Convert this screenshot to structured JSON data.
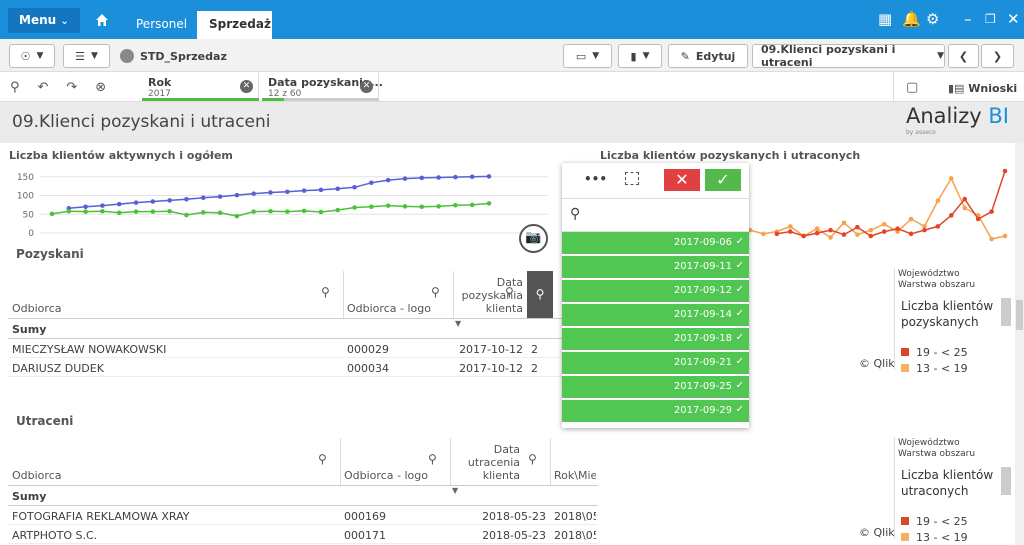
{
  "topbar": {
    "menu": "Menu",
    "tabs": [
      "Personel",
      "Sprzedaż"
    ]
  },
  "toolbar": {
    "app": "STD_Sprzedaz",
    "edit": "Edytuj",
    "sheet": "09.Klienci pozyskani i utraceni"
  },
  "selections": {
    "items": [
      {
        "field": "Rok",
        "value": "2017"
      },
      {
        "field": "Data pozyskania...",
        "value": "12 z 60"
      }
    ],
    "insights": "Wnioski"
  },
  "sheet": {
    "title": "09.Klienci pozyskani i utraceni",
    "logo": [
      "Analizy",
      "BI"
    ],
    "logo_sub": "by asseco"
  },
  "chart_data": [
    {
      "type": "line",
      "title": "Liczba klientów aktywnych i ogółem",
      "ylim": [
        0,
        160
      ],
      "yticks": [
        0,
        50,
        100,
        150
      ],
      "grid": true,
      "series": [
        {
          "color": "#5b5fd4",
          "values": [
            null,
            66,
            70,
            73,
            77,
            81,
            84,
            87,
            90,
            94,
            97,
            101,
            105,
            108,
            110,
            113,
            115,
            118,
            122,
            134,
            141,
            145,
            147,
            148,
            149,
            150,
            151
          ]
        },
        {
          "color": "#4cc23a",
          "values": [
            51,
            58,
            57,
            58,
            54,
            57,
            57,
            58,
            48,
            55,
            54,
            45,
            57,
            58,
            57,
            59,
            56,
            61,
            68,
            70,
            73,
            71,
            70,
            71,
            74,
            75,
            79
          ]
        }
      ]
    },
    {
      "type": "line",
      "title": "Liczba klientów pozyskanych i utraconych",
      "series": [
        {
          "color": "#f5a24a",
          "values": [
            20,
            15,
            18,
            25,
            12,
            22,
            10,
            30,
            14,
            20,
            28,
            18,
            35,
            25,
            60,
            90,
            50,
            40,
            8,
            12
          ]
        },
        {
          "color": "#e2452b",
          "values": [
            null,
            null,
            15,
            18,
            12,
            16,
            20,
            14,
            24,
            12,
            18,
            22,
            15,
            20,
            25,
            40,
            62,
            35,
            45,
            100
          ]
        }
      ]
    }
  ],
  "tables": [
    {
      "title": "Pozyskani",
      "columns": [
        "Odbiorca",
        "Odbiorca - logo",
        "Data pozyskania klienta",
        "R"
      ],
      "totals": "Sumy",
      "rows": [
        [
          "MIECZYSŁAW NOWAKOWSKI",
          "000029",
          "2017-10-12",
          "2"
        ],
        [
          "DARIUSZ DUDEK",
          "000034",
          "2017-10-12",
          "2"
        ]
      ]
    },
    {
      "title": "Utraceni",
      "columns": [
        "Odbiorca",
        "Odbiorca - logo",
        "Data utracenia klienta",
        "Rok\\Mie"
      ],
      "totals": "Sumy",
      "rows": [
        [
          "FOTOGRAFIA REKLAMOWA XRAY",
          "000169",
          "2018-05-23",
          "2018\\05"
        ],
        [
          "ARTPHOTO S.C.",
          "000171",
          "2018-05-23",
          "2018\\05"
        ]
      ]
    }
  ],
  "maps": [
    {
      "legend_title": "Województwo",
      "layer": "Warstwa obszaru",
      "measure": "Liczba klientów pozyskanych",
      "legend": [
        {
          "label": "19 - < 25",
          "color": "#d9472b"
        },
        {
          "label": "13 - < 19",
          "color": "#f5b061"
        }
      ],
      "credit": "© Qlik"
    },
    {
      "legend_title": "Województwo",
      "layer": "Warstwa obszaru",
      "measure": "Liczba klientów utraconych",
      "legend": [
        {
          "label": "19 - < 25",
          "color": "#d9472b"
        },
        {
          "label": "13 - < 19",
          "color": "#f5b061"
        }
      ],
      "credit": "© Qlik"
    }
  ],
  "dropdown": {
    "items": [
      "2017-09-06",
      "2017-09-11",
      "2017-09-12",
      "2017-09-14",
      "2017-09-18",
      "2017-09-21",
      "2017-09-25",
      "2017-09-29"
    ]
  }
}
